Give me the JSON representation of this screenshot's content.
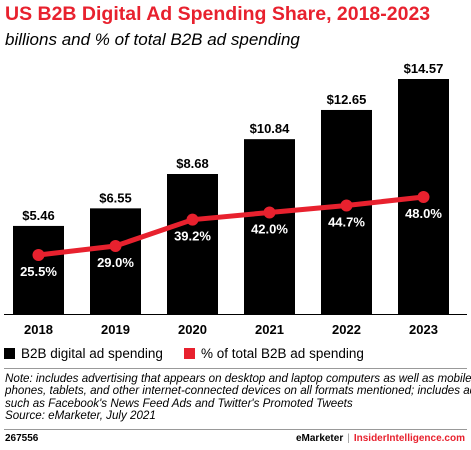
{
  "title": "US B2B Digital Ad Spending Share, 2018-2023",
  "subtitle": "billions and % of total B2B ad spending",
  "chart_data": {
    "type": "bar",
    "categories": [
      "2018",
      "2019",
      "2020",
      "2021",
      "2022",
      "2023"
    ],
    "series": [
      {
        "name": "B2B digital ad spending",
        "kind": "bar",
        "color": "#000000",
        "values": [
          5.46,
          6.55,
          8.68,
          10.84,
          12.65,
          14.57
        ],
        "labels": [
          "$5.46",
          "$6.55",
          "$8.68",
          "$10.84",
          "$12.65",
          "$14.57"
        ]
      },
      {
        "name": "% of total B2B ad spending",
        "kind": "line",
        "color": "#e8212e",
        "values": [
          25.5,
          29.0,
          39.2,
          42.0,
          44.7,
          48.0
        ],
        "labels": [
          "25.5%",
          "29.0%",
          "39.2%",
          "42.0%",
          "44.7%",
          "48.0%"
        ]
      }
    ],
    "legend_position": "bottom-left",
    "grid": false
  },
  "note": {
    "lines": [
      "Note: includes advertising that appears on desktop and laptop computers as well as mobile",
      "phones, tablets, and other internet-connected devices on all formats mentioned; includes ads",
      "such as Facebook's News Feed Ads and Twitter's Promoted Tweets",
      "Source: eMarketer, July 2021"
    ]
  },
  "footer": {
    "chart_id": "267556",
    "brand": "eMarketer",
    "separator": "|",
    "site": "InsiderIntelligence.com"
  }
}
